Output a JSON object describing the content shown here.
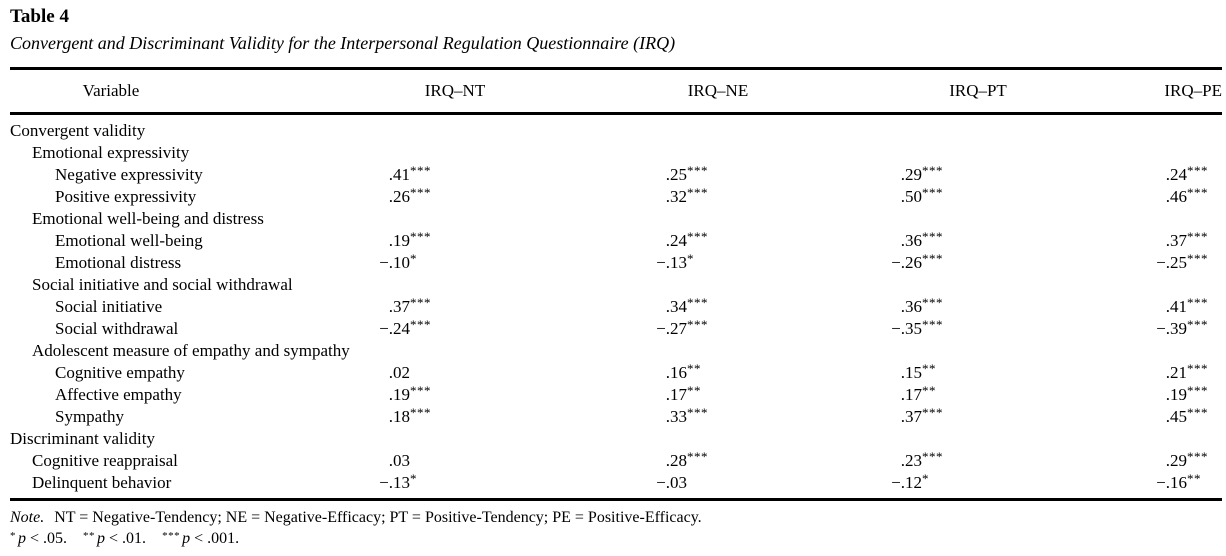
{
  "document": {
    "title": "Table 4",
    "caption": "Convergent and Discriminant Validity for the Interpersonal Regulation Questionnaire (IRQ)"
  },
  "table": {
    "columns": [
      "Variable",
      "IRQ–NT",
      "IRQ–NE",
      "IRQ–PT",
      "IRQ–PE"
    ],
    "rows": [
      {
        "label": "Convergent validity",
        "indent": 0,
        "values": null
      },
      {
        "label": "Emotional expressivity",
        "indent": 1,
        "values": null
      },
      {
        "label": "Negative expressivity",
        "indent": 2,
        "values": [
          {
            "value": ".41",
            "stars": "***"
          },
          {
            "value": ".25",
            "stars": "***"
          },
          {
            "value": ".29",
            "stars": "***"
          },
          {
            "value": ".24",
            "stars": "***"
          }
        ]
      },
      {
        "label": "Positive expressivity",
        "indent": 2,
        "values": [
          {
            "value": ".26",
            "stars": "***"
          },
          {
            "value": ".32",
            "stars": "***"
          },
          {
            "value": ".50",
            "stars": "***"
          },
          {
            "value": ".46",
            "stars": "***"
          }
        ]
      },
      {
        "label": "Emotional well-being and distress",
        "indent": 1,
        "values": null
      },
      {
        "label": "Emotional well-being",
        "indent": 2,
        "values": [
          {
            "value": ".19",
            "stars": "***"
          },
          {
            "value": ".24",
            "stars": "***"
          },
          {
            "value": ".36",
            "stars": "***"
          },
          {
            "value": ".37",
            "stars": "***"
          }
        ]
      },
      {
        "label": "Emotional distress",
        "indent": 2,
        "values": [
          {
            "value": "−.10",
            "stars": "*"
          },
          {
            "value": "−.13",
            "stars": "*"
          },
          {
            "value": "−.26",
            "stars": "***"
          },
          {
            "value": "−.25",
            "stars": "***"
          }
        ]
      },
      {
        "label": "Social initiative and social withdrawal",
        "indent": 1,
        "values": null
      },
      {
        "label": "Social initiative",
        "indent": 2,
        "values": [
          {
            "value": ".37",
            "stars": "***"
          },
          {
            "value": ".34",
            "stars": "***"
          },
          {
            "value": ".36",
            "stars": "***"
          },
          {
            "value": ".41",
            "stars": "***"
          }
        ]
      },
      {
        "label": "Social withdrawal",
        "indent": 2,
        "values": [
          {
            "value": "−.24",
            "stars": "***"
          },
          {
            "value": "−.27",
            "stars": "***"
          },
          {
            "value": "−.35",
            "stars": "***"
          },
          {
            "value": "−.39",
            "stars": "***"
          }
        ]
      },
      {
        "label": "Adolescent measure of empathy and sympathy",
        "indent": 1,
        "values": null
      },
      {
        "label": "Cognitive empathy",
        "indent": 2,
        "values": [
          {
            "value": ".02",
            "stars": ""
          },
          {
            "value": ".16",
            "stars": "**"
          },
          {
            "value": ".15",
            "stars": "**"
          },
          {
            "value": ".21",
            "stars": "***"
          }
        ]
      },
      {
        "label": "Affective empathy",
        "indent": 2,
        "values": [
          {
            "value": ".19",
            "stars": "***"
          },
          {
            "value": ".17",
            "stars": "**"
          },
          {
            "value": ".17",
            "stars": "**"
          },
          {
            "value": ".19",
            "stars": "***"
          }
        ]
      },
      {
        "label": "Sympathy",
        "indent": 2,
        "values": [
          {
            "value": ".18",
            "stars": "***"
          },
          {
            "value": ".33",
            "stars": "***"
          },
          {
            "value": ".37",
            "stars": "***"
          },
          {
            "value": ".45",
            "stars": "***"
          }
        ]
      },
      {
        "label": "Discriminant validity",
        "indent": 0,
        "values": null
      },
      {
        "label": "Cognitive reappraisal",
        "indent": 1,
        "values": [
          {
            "value": ".03",
            "stars": ""
          },
          {
            "value": ".28",
            "stars": "***"
          },
          {
            "value": ".23",
            "stars": "***"
          },
          {
            "value": ".29",
            "stars": "***"
          }
        ]
      },
      {
        "label": "Delinquent behavior",
        "indent": 1,
        "values": [
          {
            "value": "−.13",
            "stars": "*"
          },
          {
            "value": "−.03",
            "stars": ""
          },
          {
            "value": "−.12",
            "stars": "*"
          },
          {
            "value": "−.16",
            "stars": "**"
          }
        ]
      }
    ]
  },
  "note": {
    "label": "Note.",
    "text": "NT = Negative-Tendency; NE = Negative-Efficacy; PT = Positive-Tendency; PE = Positive-Efficacy.",
    "significance": [
      {
        "stars": "*",
        "variable": "p",
        "condition": "< .05."
      },
      {
        "stars": "**",
        "variable": "p",
        "condition": "< .01."
      },
      {
        "stars": "***",
        "variable": "p",
        "condition": "< .001."
      }
    ]
  },
  "colors": {
    "text": "#000000",
    "background": "#ffffff"
  }
}
